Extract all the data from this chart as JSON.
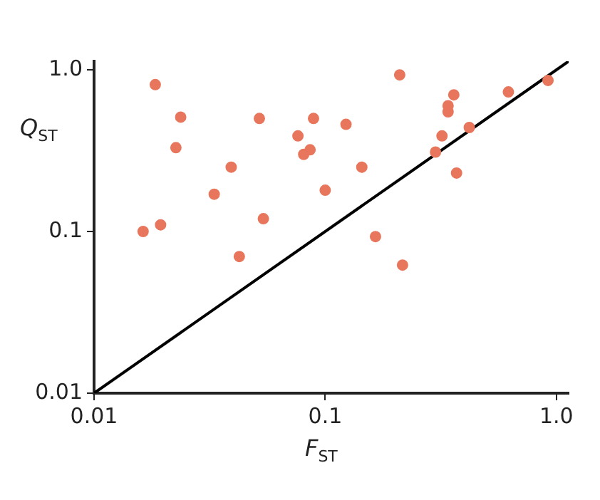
{
  "chart_data": {
    "type": "scatter",
    "xlabel": "F$_{ST}$",
    "ylabel": "Q$_{ST}$",
    "log": "xy",
    "xlim": [
      0.01,
      1.13
    ],
    "ylim": [
      0.01,
      1.13
    ],
    "xticks": [
      0.01,
      0.1,
      {
        "value": 1,
        "label": "1.0"
      }
    ],
    "yticks": [
      0.01,
      0.1,
      {
        "value": 1,
        "label": "1.0"
      }
    ],
    "series": [
      {
        "marker": "circle",
        "color": "#e8765c",
        "x": [
          0.0184,
          0.0237,
          0.0226,
          0.0519,
          0.089,
          0.0762,
          0.086,
          0.0807,
          0.0392,
          0.0331,
          0.1,
          0.0163,
          0.0194,
          0.054,
          0.0425,
          0.21,
          0.36,
          0.34,
          0.34,
          0.62,
          0.92,
          0.123,
          0.144,
          0.42,
          0.32,
          0.3,
          0.37,
          0.165,
          0.216
        ],
        "values": [
          0.81,
          0.51,
          0.33,
          0.5,
          0.5,
          0.39,
          0.32,
          0.3,
          0.25,
          0.17,
          0.18,
          0.1,
          0.11,
          0.12,
          0.07,
          0.93,
          0.7,
          0.6,
          0.55,
          0.73,
          0.86,
          0.46,
          0.25,
          0.44,
          0.39,
          0.31,
          0.23,
          0.093,
          0.062
        ]
      },
      {
        "type": "line",
        "marker": "none",
        "line_style": "solid",
        "color": "#000000",
        "x": [
          0.01,
          1.13
        ],
        "values": [
          0.01,
          1.13
        ]
      }
    ]
  }
}
